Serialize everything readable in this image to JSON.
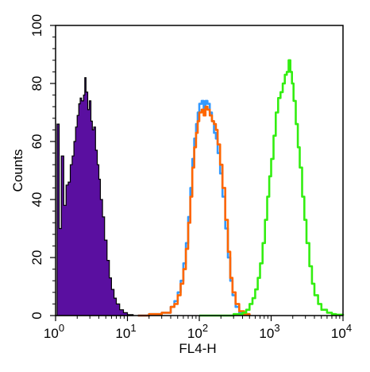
{
  "chart_data": {
    "type": "area",
    "xlabel": "FL4-H",
    "ylabel": "Counts",
    "x_scale": "log",
    "xlim": [
      1,
      10000
    ],
    "ylim": [
      0,
      100
    ],
    "x_ticks": [
      {
        "value": 1,
        "base": "10",
        "exp": "0"
      },
      {
        "value": 10,
        "base": "10",
        "exp": "1"
      },
      {
        "value": 100,
        "base": "10",
        "exp": "2"
      },
      {
        "value": 1000,
        "base": "10",
        "exp": "3"
      },
      {
        "value": 10000,
        "base": "10",
        "exp": "4"
      }
    ],
    "y_ticks": [
      0,
      20,
      40,
      60,
      80,
      100
    ],
    "grid": false,
    "legend": "none",
    "series": [
      {
        "color": "#5a0fa0",
        "fill": true,
        "points": [
          [
            1.0,
            0
          ],
          [
            1.05,
            66
          ],
          [
            1.12,
            30
          ],
          [
            1.2,
            55
          ],
          [
            1.3,
            38
          ],
          [
            1.4,
            45
          ],
          [
            1.5,
            46
          ],
          [
            1.6,
            52
          ],
          [
            1.7,
            55
          ],
          [
            1.8,
            60
          ],
          [
            1.9,
            65
          ],
          [
            2.0,
            69
          ],
          [
            2.1,
            73
          ],
          [
            2.2,
            75
          ],
          [
            2.3,
            74
          ],
          [
            2.45,
            76
          ],
          [
            2.55,
            82
          ],
          [
            2.65,
            77
          ],
          [
            2.8,
            71
          ],
          [
            2.95,
            74
          ],
          [
            3.1,
            67
          ],
          [
            3.25,
            64
          ],
          [
            3.4,
            65
          ],
          [
            3.6,
            57
          ],
          [
            3.8,
            52
          ],
          [
            4.0,
            47
          ],
          [
            4.2,
            40
          ],
          [
            4.5,
            34
          ],
          [
            4.8,
            26
          ],
          [
            5.2,
            19
          ],
          [
            5.6,
            13
          ],
          [
            6.0,
            9
          ],
          [
            6.5,
            6
          ],
          [
            7.0,
            4
          ],
          [
            7.8,
            2
          ],
          [
            8.8,
            1
          ],
          [
            10,
            0.3
          ],
          [
            12,
            0
          ]
        ]
      },
      {
        "color": "#3399ff",
        "fill": false,
        "points": [
          [
            14,
            0
          ],
          [
            20,
            0.5
          ],
          [
            30,
            1
          ],
          [
            40,
            3
          ],
          [
            45,
            5
          ],
          [
            50,
            8
          ],
          [
            55,
            12
          ],
          [
            60,
            18
          ],
          [
            65,
            25
          ],
          [
            70,
            34
          ],
          [
            75,
            44
          ],
          [
            80,
            54
          ],
          [
            85,
            61
          ],
          [
            90,
            66
          ],
          [
            95,
            70
          ],
          [
            100,
            73
          ],
          [
            108,
            74
          ],
          [
            115,
            71
          ],
          [
            122,
            74
          ],
          [
            130,
            73
          ],
          [
            140,
            70
          ],
          [
            150,
            67
          ],
          [
            160,
            63
          ],
          [
            170,
            61
          ],
          [
            180,
            56
          ],
          [
            195,
            49
          ],
          [
            210,
            41
          ],
          [
            230,
            30
          ],
          [
            250,
            20
          ],
          [
            270,
            12
          ],
          [
            290,
            7
          ],
          [
            320,
            3
          ],
          [
            360,
            1
          ],
          [
            420,
            0.3
          ],
          [
            500,
            0
          ]
        ]
      },
      {
        "color": "#ff6600",
        "fill": false,
        "points": [
          [
            14,
            0
          ],
          [
            20,
            0.5
          ],
          [
            30,
            1
          ],
          [
            40,
            3
          ],
          [
            45,
            4
          ],
          [
            50,
            7
          ],
          [
            55,
            11
          ],
          [
            60,
            16
          ],
          [
            65,
            23
          ],
          [
            70,
            32
          ],
          [
            75,
            41
          ],
          [
            80,
            51
          ],
          [
            85,
            58
          ],
          [
            90,
            63
          ],
          [
            95,
            67
          ],
          [
            100,
            70
          ],
          [
            108,
            71
          ],
          [
            115,
            69
          ],
          [
            122,
            72
          ],
          [
            130,
            71
          ],
          [
            140,
            69
          ],
          [
            150,
            67
          ],
          [
            160,
            66
          ],
          [
            170,
            64
          ],
          [
            180,
            59
          ],
          [
            195,
            52
          ],
          [
            210,
            44
          ],
          [
            230,
            33
          ],
          [
            250,
            22
          ],
          [
            270,
            13
          ],
          [
            290,
            8
          ],
          [
            320,
            4
          ],
          [
            360,
            1.5
          ],
          [
            420,
            0.5
          ],
          [
            500,
            0
          ]
        ]
      },
      {
        "color": "#33ee11",
        "fill": false,
        "points": [
          [
            100,
            0
          ],
          [
            300,
            0.5
          ],
          [
            400,
            1
          ],
          [
            450,
            2
          ],
          [
            500,
            4
          ],
          [
            550,
            6
          ],
          [
            600,
            9
          ],
          [
            650,
            13
          ],
          [
            700,
            18
          ],
          [
            760,
            25
          ],
          [
            820,
            33
          ],
          [
            880,
            41
          ],
          [
            940,
            48
          ],
          [
            1000,
            54
          ],
          [
            1080,
            62
          ],
          [
            1160,
            70
          ],
          [
            1250,
            75
          ],
          [
            1350,
            77
          ],
          [
            1450,
            80
          ],
          [
            1550,
            83
          ],
          [
            1650,
            84
          ],
          [
            1750,
            88
          ],
          [
            1850,
            84
          ],
          [
            1950,
            80
          ],
          [
            2050,
            74
          ],
          [
            2200,
            66
          ],
          [
            2350,
            58
          ],
          [
            2500,
            51
          ],
          [
            2700,
            41
          ],
          [
            2900,
            33
          ],
          [
            3100,
            25
          ],
          [
            3400,
            17
          ],
          [
            3700,
            11
          ],
          [
            4000,
            7
          ],
          [
            4500,
            4
          ],
          [
            5000,
            2
          ],
          [
            6000,
            1
          ],
          [
            7000,
            0.5
          ],
          [
            8000,
            0.3
          ],
          [
            10000,
            0
          ]
        ]
      }
    ]
  }
}
